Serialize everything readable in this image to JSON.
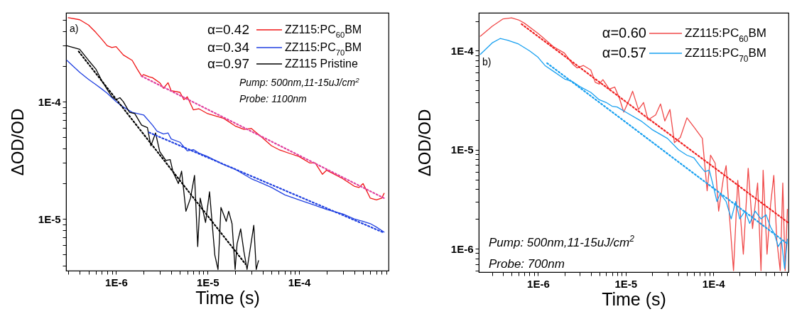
{
  "chart_data": [
    {
      "type": "line",
      "xlabel": "Time (s)",
      "ylabel": "ΔOD/OD",
      "log": "xy",
      "legend": "top right",
      "xlim": [
        2.84e-07,
        0.00095
      ],
      "ylim": [
        3.61e-06,
        0.000573
      ],
      "xticks": [
        {
          "value": 3e-07,
          "label": null
        },
        {
          "value": 4e-07,
          "label": null
        },
        {
          "value": 5e-07,
          "label": null
        },
        {
          "value": 6e-07,
          "label": null
        },
        {
          "value": 7e-07,
          "label": null
        },
        {
          "value": 8e-07,
          "label": null
        },
        {
          "value": 9e-07,
          "label": null
        },
        {
          "value": 1e-06,
          "label": "1E-6"
        },
        {
          "value": 2e-06,
          "label": null
        },
        {
          "value": 3e-06,
          "label": null
        },
        {
          "value": 4e-06,
          "label": null
        },
        {
          "value": 5e-06,
          "label": null
        },
        {
          "value": 6e-06,
          "label": null
        },
        {
          "value": 7e-06,
          "label": null
        },
        {
          "value": 8e-06,
          "label": null
        },
        {
          "value": 9e-06,
          "label": null
        },
        {
          "value": 1e-05,
          "label": "1E-5"
        },
        {
          "value": 2e-05,
          "label": null
        },
        {
          "value": 3e-05,
          "label": null
        },
        {
          "value": 4e-05,
          "label": null
        },
        {
          "value": 5e-05,
          "label": null
        },
        {
          "value": 6e-05,
          "label": null
        },
        {
          "value": 7e-05,
          "label": null
        },
        {
          "value": 8e-05,
          "label": null
        },
        {
          "value": 9e-05,
          "label": null
        },
        {
          "value": 0.0001,
          "label": "1E-4"
        },
        {
          "value": 0.0002,
          "label": null
        },
        {
          "value": 0.0003,
          "label": null
        },
        {
          "value": 0.0004,
          "label": null
        },
        {
          "value": 0.0005,
          "label": null
        },
        {
          "value": 0.0006,
          "label": null
        },
        {
          "value": 0.0007,
          "label": null
        },
        {
          "value": 0.0008,
          "label": null
        },
        {
          "value": 0.0009,
          "label": null
        }
      ],
      "yticks": [
        {
          "value": 4e-06,
          "label": null
        },
        {
          "value": 5e-06,
          "label": null
        },
        {
          "value": 6e-06,
          "label": null
        },
        {
          "value": 7e-06,
          "label": null
        },
        {
          "value": 8e-06,
          "label": null
        },
        {
          "value": 9e-06,
          "label": null
        },
        {
          "value": 1e-05,
          "label": "1E-5"
        },
        {
          "value": 2e-05,
          "label": null
        },
        {
          "value": 3e-05,
          "label": null
        },
        {
          "value": 4e-05,
          "label": null
        },
        {
          "value": 5e-05,
          "label": null
        },
        {
          "value": 6e-05,
          "label": null
        },
        {
          "value": 7e-05,
          "label": null
        },
        {
          "value": 8e-05,
          "label": null
        },
        {
          "value": 9e-05,
          "label": null
        },
        {
          "value": 0.0001,
          "label": "1E-4"
        },
        {
          "value": 0.0002,
          "label": null
        },
        {
          "value": 0.0003,
          "label": null
        },
        {
          "value": 0.0004,
          "label": null
        },
        {
          "value": 0.0005,
          "label": null
        }
      ],
      "annotations": [
        "a)",
        "α=0.42",
        "α=0.34",
        "α=0.97",
        "Pump: 500nm,11-15uJ/cm$^{2}$",
        "Probe: 1100nm"
      ],
      "series": [
        {
          "name": "ZZ115:PC$_{60}$BM",
          "color": "#f01414",
          "x": [
            3e-07,
            4e-07,
            5e-07,
            6e-07,
            7e-07,
            8e-07,
            9e-07,
            1e-06,
            1.2e-06,
            1.5e-06,
            1.7e-06,
            1.9e-06,
            2e-06,
            2.3e-06,
            2.5e-06,
            3e-06,
            3.3e-06,
            3.7e-06,
            4e-06,
            5e-06,
            5.5e-06,
            6e-06,
            7e-06,
            8e-06,
            1e-05,
            1.5e-05,
            2e-05,
            2.5e-05,
            3e-05,
            4e-05,
            5e-05,
            6e-05,
            8e-05,
            0.0001,
            0.00013,
            0.00015,
            0.00018,
            0.0002,
            0.0003,
            0.0004,
            0.00045,
            0.0005,
            0.0006,
            0.0007,
            0.0008,
            0.00085
          ],
          "values": [
            0.00052,
            0.0005,
            0.00045,
            0.00039,
            0.00034,
            0.0003,
            0.00029,
            0.000295,
            0.00025,
            0.000225,
            0.00019,
            0.000165,
            0.00017,
            0.000163,
            0.00016,
            0.000145,
            0.00013,
            0.000145,
            0.000124,
            0.00012,
            0.000104,
            0.00011,
            8.5e-05,
            8.7e-05,
            7.9e-05,
            7.2e-05,
            6.2e-05,
            5.8e-05,
            5.9e-05,
            4.9e-05,
            4.2e-05,
            3.9e-05,
            3.6e-05,
            3.4e-05,
            3e-05,
            3e-05,
            2.4e-05,
            2.6e-05,
            2.2e-05,
            1.9e-05,
            1.85e-05,
            2e-05,
            1.5e-05,
            1.45e-05,
            1.5e-05,
            1.65e-05
          ]
        },
        {
          "name": "ZZ115:PC$_{70}$BM",
          "color": "#2040e0",
          "x": [
            2.9e-07,
            4e-07,
            5e-07,
            6e-07,
            7e-07,
            8e-07,
            1e-06,
            1.2e-06,
            1.5e-06,
            2e-06,
            2.5e-06,
            2.8e-06,
            3.3e-06,
            3.7e-06,
            4e-06,
            5e-06,
            6e-06,
            7e-06,
            8e-06,
            1e-05,
            1.5e-05,
            2e-05,
            3e-05,
            4e-05,
            5e-05,
            7e-05,
            0.0001,
            0.00015,
            0.0002,
            0.0003,
            0.0004,
            0.0005,
            0.0006,
            0.0007,
            0.00085
          ],
          "values": [
            0.000225,
            0.000178,
            0.000155,
            0.00014,
            0.000128,
            0.000118,
            0.0001,
            9e-05,
            8.1e-05,
            7.7e-05,
            6.3e-05,
            5.6e-05,
            5.3e-05,
            5.4e-05,
            4.8e-05,
            4.5e-05,
            3.8e-05,
            3.9e-05,
            3.65e-05,
            3.4e-05,
            2.9e-05,
            2.65e-05,
            2.2e-05,
            2e-05,
            1.85e-05,
            1.6e-05,
            1.45e-05,
            1.3e-05,
            1.2e-05,
            1.1e-05,
            1e-05,
            9.5e-06,
            9.1e-06,
            8.5e-06,
            7.7e-06
          ]
        },
        {
          "name": "ZZ115 Pristine",
          "color": "#000000",
          "x": [
            2.9e-07,
            4e-07,
            5e-07,
            6e-07,
            7e-07,
            8e-07,
            9e-07,
            1e-06,
            1.1e-06,
            1.2e-06,
            1.4e-06,
            1.6e-06,
            1.9e-06,
            2.2e-06,
            2.4e-06,
            2.7e-06,
            3e-06,
            3.5e-06,
            3.9e-06,
            4.2e-06,
            4.8e-06,
            5.2e-06,
            5.8e-06,
            6.5e-06,
            7.2e-06,
            7.8e-06,
            8.3e-06,
            9.5e-06,
            1.05e-05,
            1.2e-05,
            1.3e-05,
            1.4e-05,
            1.6e-05,
            1.7e-05,
            1.85e-05,
            2e-05,
            2.1e-05,
            2.3e-05,
            2.5e-05,
            2.7e-05,
            3.2e-05,
            3.4e-05,
            3.6e-05
          ],
          "values": [
            0.0003,
            0.00028,
            0.000225,
            0.00019,
            0.00015,
            0.000127,
            0.00011,
            0.000104,
            0.000108,
            0.0001,
            8.1e-05,
            7.9e-05,
            6.3e-05,
            6e-05,
            4.2e-05,
            5.4e-05,
            3.75e-05,
            3.15e-05,
            3.2e-05,
            2.5e-05,
            2e-05,
            2.55e-05,
            1.16e-05,
            1.5e-05,
            2.35e-05,
            5.8e-06,
            1.5e-05,
            9.3e-06,
            1.7e-05,
            4.9e-06,
            3.7e-06,
            1.25e-05,
            9.5e-06,
            1.16e-05,
            9.1e-06,
            3.7e-06,
            6.1e-06,
            8.2e-06,
            5.2e-06,
            3.7e-06,
            8.8e-06,
            3.7e-06,
            4.4e-06
          ]
        },
        {
          "type": "line",
          "line_style": "dotted",
          "color": "#e0409f",
          "x": [
            1.9e-06,
            0.00085
          ],
          "values": [
            0.000165,
            1.5e-05
          ]
        },
        {
          "type": "line",
          "line_style": "dotted",
          "color": "#2040e0",
          "x": [
            2.3e-06,
            0.00085
          ],
          "values": [
            5.45e-05,
            7.6e-06
          ]
        },
        {
          "type": "line",
          "line_style": "dotted",
          "color": "#000000",
          "x": [
            3.9e-07,
            2.6e-05
          ],
          "values": [
            0.000268,
            4.1e-06
          ]
        }
      ]
    },
    {
      "type": "line",
      "xlabel": "Time (s)",
      "ylabel": "ΔOD/OD",
      "log": "xy",
      "legend": "top right",
      "xlim": [
        2.11e-07,
        0.00072
      ],
      "ylim": [
        5.8e-07,
        0.000242
      ],
      "xticks": [
        {
          "value": 3e-07,
          "label": null
        },
        {
          "value": 4e-07,
          "label": null
        },
        {
          "value": 5e-07,
          "label": null
        },
        {
          "value": 6e-07,
          "label": null
        },
        {
          "value": 7e-07,
          "label": null
        },
        {
          "value": 8e-07,
          "label": null
        },
        {
          "value": 9e-07,
          "label": null
        },
        {
          "value": 1e-06,
          "label": "1E-6"
        },
        {
          "value": 2e-06,
          "label": null
        },
        {
          "value": 3e-06,
          "label": null
        },
        {
          "value": 4e-06,
          "label": null
        },
        {
          "value": 5e-06,
          "label": null
        },
        {
          "value": 6e-06,
          "label": null
        },
        {
          "value": 7e-06,
          "label": null
        },
        {
          "value": 8e-06,
          "label": null
        },
        {
          "value": 9e-06,
          "label": null
        },
        {
          "value": 1e-05,
          "label": "1E-5"
        },
        {
          "value": 2e-05,
          "label": null
        },
        {
          "value": 3e-05,
          "label": null
        },
        {
          "value": 4e-05,
          "label": null
        },
        {
          "value": 5e-05,
          "label": null
        },
        {
          "value": 6e-05,
          "label": null
        },
        {
          "value": 7e-05,
          "label": null
        },
        {
          "value": 8e-05,
          "label": null
        },
        {
          "value": 9e-05,
          "label": null
        },
        {
          "value": 0.0001,
          "label": "1E-4"
        },
        {
          "value": 0.0002,
          "label": null
        },
        {
          "value": 0.0003,
          "label": null
        },
        {
          "value": 0.0004,
          "label": null
        },
        {
          "value": 0.0005,
          "label": null
        },
        {
          "value": 0.0006,
          "label": null
        },
        {
          "value": 0.0007,
          "label": null
        }
      ],
      "yticks": [
        {
          "value": 6e-07,
          "label": null
        },
        {
          "value": 7e-07,
          "label": null
        },
        {
          "value": 8e-07,
          "label": null
        },
        {
          "value": 9e-07,
          "label": null
        },
        {
          "value": 1e-06,
          "label": "1E-6"
        },
        {
          "value": 2e-06,
          "label": null
        },
        {
          "value": 3e-06,
          "label": null
        },
        {
          "value": 4e-06,
          "label": null
        },
        {
          "value": 5e-06,
          "label": null
        },
        {
          "value": 6e-06,
          "label": null
        },
        {
          "value": 7e-06,
          "label": null
        },
        {
          "value": 8e-06,
          "label": null
        },
        {
          "value": 9e-06,
          "label": null
        },
        {
          "value": 1e-05,
          "label": "1E-5"
        },
        {
          "value": 2e-05,
          "label": null
        },
        {
          "value": 3e-05,
          "label": null
        },
        {
          "value": 4e-05,
          "label": null
        },
        {
          "value": 5e-05,
          "label": null
        },
        {
          "value": 6e-05,
          "label": null
        },
        {
          "value": 7e-05,
          "label": null
        },
        {
          "value": 8e-05,
          "label": null
        },
        {
          "value": 9e-05,
          "label": null
        },
        {
          "value": 0.0001,
          "label": "1E-4"
        },
        {
          "value": 0.0002,
          "label": null
        }
      ],
      "annotations": [
        "b)",
        "α=0.60",
        "α=0.57",
        "Pump: 500nm,11-15uJ/cm$^{2}$",
        "Probe: 700nm"
      ],
      "series": [
        {
          "name": "ZZ115:PC$_{60}$BM",
          "color": "#f04848",
          "x": [
            2.2e-07,
            3e-07,
            4e-07,
            5e-07,
            6e-07,
            7e-07,
            1e-06,
            1.5e-06,
            2e-06,
            2.5e-06,
            2.8e-06,
            3.3e-06,
            4e-06,
            4.5e-06,
            5e-06,
            5.5e-06,
            6.5e-06,
            7.5e-06,
            8.5e-06,
            9.5e-06,
            1.1e-05,
            1.2e-05,
            1.4e-05,
            1.6e-05,
            1.8e-05,
            2.2e-05,
            2.5e-05,
            2.8e-05,
            3.2e-05,
            3.6e-05,
            4.2e-05,
            5e-05,
            6e-05,
            7.5e-05,
            8.5e-05,
            9.3e-05,
            0.000105,
            0.000115,
            0.00013,
            0.00014,
            0.000155,
            0.00017,
            0.00019,
            0.00022,
            0.00025,
            0.00028,
            0.00032,
            0.00035,
            0.00037,
            0.00041,
            0.00045,
            0.00049,
            0.00053,
            0.00058,
            0.00062,
            0.00066,
            0.0007
          ],
          "values": [
            0.00014,
            0.000177,
            0.00021,
            0.000215,
            0.000205,
            0.00019,
            0.00015,
            0.00011,
            9.5e-05,
            7.3e-05,
            6.7e-05,
            7.1e-05,
            6.4e-05,
            4.8e-05,
            4.6e-05,
            5.1e-05,
            4.1e-05,
            4.3e-05,
            3.3e-05,
            2.4e-05,
            3.2e-05,
            3.9e-05,
            2.55e-05,
            3e-05,
            2e-05,
            2.25e-05,
            2.9e-05,
            1.95e-05,
            2.55e-05,
            1.18e-05,
            1.33e-05,
            2.1e-05,
            1.7e-05,
            1.3e-05,
            3.85e-06,
            8.8e-06,
            7.3e-06,
            2.4e-06,
            5.1e-06,
            6.9e-06,
            1.8e-06,
            6e-07,
            4.9e-06,
            8.8e-07,
            6.5e-06,
            1.6e-06,
            4.6e-06,
            6e-07,
            6.2e-06,
            8.8e-07,
            2.8e-06,
            5.5e-06,
            1.2e-06,
            6e-07,
            4.6e-06,
            6e-07,
            2.5e-06
          ]
        },
        {
          "name": "ZZ115:PC$_{70}$BM",
          "color": "#18a0f0",
          "x": [
            2.2e-07,
            3e-07,
            3.7e-07,
            4.5e-07,
            6e-07,
            8e-07,
            1e-06,
            1.2e-06,
            1.5e-06,
            2e-06,
            2.5e-06,
            3e-06,
            4e-06,
            5e-06,
            6e-06,
            7e-06,
            8e-06,
            1e-05,
            1.5e-05,
            2e-05,
            3e-05,
            4e-05,
            5e-05,
            6e-05,
            7e-05,
            8e-05,
            9e-05,
            0.0001,
            0.00011,
            0.00012,
            0.00014,
            0.00016,
            0.00018,
            0.0002,
            0.00023,
            0.00026,
            0.0003,
            0.00035,
            0.0004,
            0.00045,
            0.0005,
            0.00055,
            0.0006,
            0.00065,
            0.0007
          ],
          "values": [
            9.2e-05,
            0.00012,
            0.000133,
            0.000128,
            0.000117,
            0.0001,
            8.6e-05,
            7.1e-05,
            6.2e-05,
            5.2e-05,
            4.85e-05,
            4.35e-05,
            3.8e-05,
            3.2e-05,
            3e-05,
            2.75e-05,
            2.7e-05,
            2.4e-05,
            1.95e-05,
            1.6e-05,
            1.3e-05,
            1e-05,
            8.8e-06,
            8.3e-06,
            6.9e-06,
            6e-06,
            6.2e-06,
            4.3e-06,
            3e-06,
            3.6e-06,
            3e-06,
            2e-06,
            3e-06,
            2e-06,
            2.4e-06,
            1.8e-06,
            2.4e-06,
            2e-06,
            2.2e-06,
            1.65e-06,
            1.4e-06,
            1.05e-06,
            1.2e-06,
            6.3e-07,
            1.25e-06
          ]
        },
        {
          "type": "line",
          "line_style": "dotted",
          "color": "#f02020",
          "x": [
            6.5e-07,
            0.00071
          ],
          "values": [
            0.000186,
            1.84e-06
          ]
        },
        {
          "type": "line",
          "line_style": "dotted",
          "color": "#18a0f0",
          "x": [
            1.27e-06,
            0.00071
          ],
          "values": [
            7.5e-05,
            1.11e-06
          ]
        }
      ]
    }
  ]
}
